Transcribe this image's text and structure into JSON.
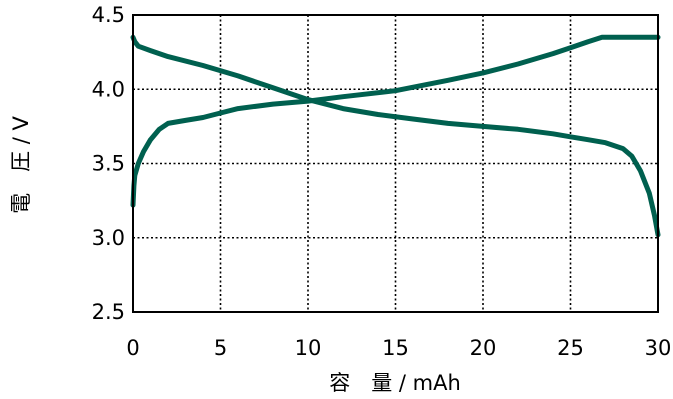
{
  "chart_data": {
    "type": "line",
    "title": "",
    "xlabel": "容　量 / mAh",
    "ylabel": "電　圧 / V",
    "xlim": [
      0,
      30
    ],
    "ylim": [
      2.5,
      4.5
    ],
    "x_ticks": [
      0,
      5,
      10,
      15,
      20,
      25,
      30
    ],
    "y_ticks": [
      2.5,
      3.0,
      3.5,
      4.0,
      4.5
    ],
    "x_tick_labels": [
      "0",
      "5",
      "10",
      "15",
      "20",
      "25",
      "30"
    ],
    "y_tick_labels": [
      "2.5",
      "3.0",
      "3.5",
      "4.0",
      "4.5"
    ],
    "grid": true,
    "grid_style": "dotted",
    "line_color": "#00604f",
    "series": [
      {
        "x": [
          0,
          0.05,
          0.1,
          0.3,
          0.6,
          1,
          1.5,
          2,
          3,
          4,
          5,
          6,
          8,
          10,
          12,
          15,
          18,
          20,
          22,
          24,
          25,
          26,
          26.8,
          27.5,
          28.5,
          30
        ],
        "y": [
          3.22,
          3.35,
          3.42,
          3.5,
          3.58,
          3.66,
          3.73,
          3.77,
          3.79,
          3.81,
          3.84,
          3.87,
          3.9,
          3.92,
          3.95,
          3.99,
          4.06,
          4.11,
          4.17,
          4.24,
          4.28,
          4.32,
          4.35,
          4.35,
          4.35,
          4.35
        ]
      },
      {
        "x": [
          0,
          0.1,
          0.3,
          1,
          2,
          4,
          6,
          8,
          10,
          12,
          14,
          16,
          18,
          20,
          22,
          24,
          25,
          26,
          27,
          28,
          28.5,
          29,
          29.5,
          29.8,
          30
        ],
        "y": [
          4.35,
          4.32,
          4.29,
          4.26,
          4.22,
          4.16,
          4.09,
          4.01,
          3.93,
          3.87,
          3.83,
          3.8,
          3.77,
          3.75,
          3.73,
          3.7,
          3.68,
          3.66,
          3.64,
          3.6,
          3.55,
          3.45,
          3.3,
          3.15,
          3.02
        ]
      }
    ]
  }
}
